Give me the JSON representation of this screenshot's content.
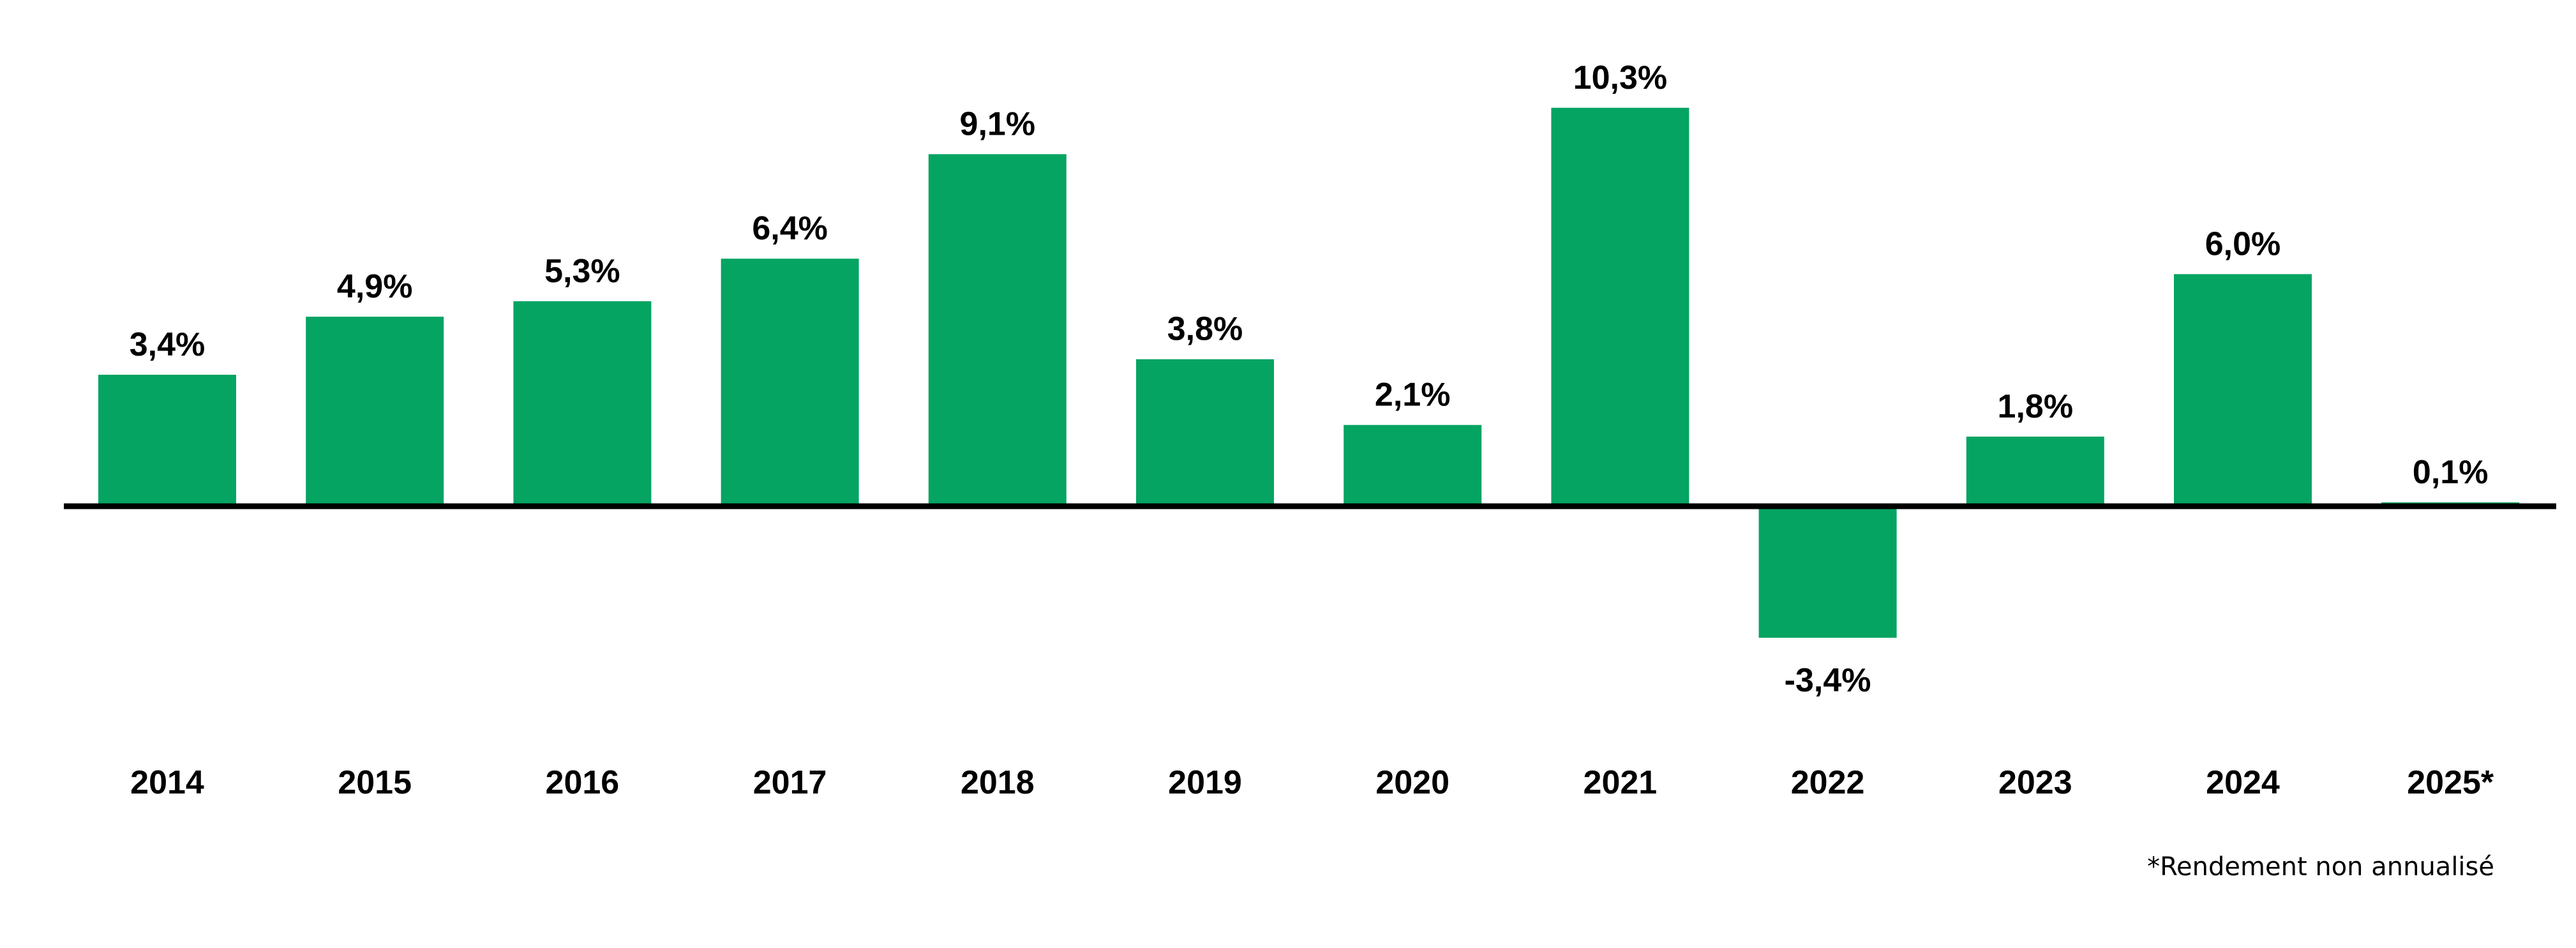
{
  "colors": {
    "bar": "#05a462",
    "axis": "#000000",
    "text": "#000000"
  },
  "footnote": "*Rendement non annualisé",
  "chart_data": {
    "type": "bar",
    "title": "",
    "xlabel": "",
    "ylabel": "",
    "categories": [
      "2014",
      "2015",
      "2016",
      "2017",
      "2018",
      "2019",
      "2020",
      "2021",
      "2022",
      "2023",
      "2024",
      "2025*"
    ],
    "values": [
      3.4,
      4.9,
      5.3,
      6.4,
      9.1,
      3.8,
      2.1,
      10.3,
      -3.4,
      1.8,
      6.0,
      0.1
    ],
    "value_labels": [
      "3,4%",
      "4,9%",
      "5,3%",
      "6,4%",
      "9,1%",
      "3,8%",
      "2,1%",
      "10,3%",
      "-3,4%",
      "1,8%",
      "6,0%",
      "0,1%"
    ],
    "unit": "%",
    "ylim": [
      -3.4,
      10.3
    ],
    "grid": false,
    "legend": "none"
  }
}
